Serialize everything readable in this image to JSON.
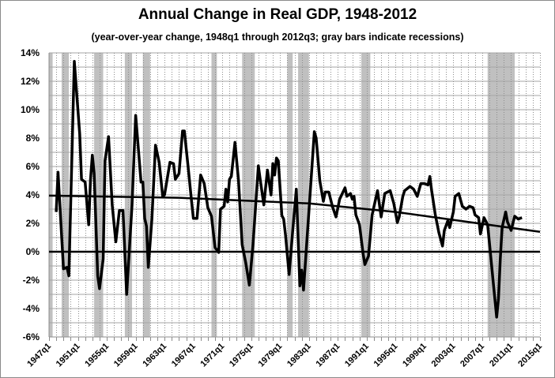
{
  "chart_data": {
    "type": "line",
    "title": "Annual Change in Real GDP, 1948-2012",
    "subtitle": "(year-over-year change, 1948q1 through 2012q3; gray bars indicate recessions)",
    "xlabel": "",
    "ylabel": "",
    "xlim": [
      "1947q1",
      "2015q1"
    ],
    "ylim": [
      -6,
      14
    ],
    "grid": {
      "horizontal": "solid, every 1%",
      "vertical": "dotted, every year"
    },
    "y_ticks": [
      {
        "value": 14,
        "label": "14%"
      },
      {
        "value": 12,
        "label": "12%"
      },
      {
        "value": 10,
        "label": "10%"
      },
      {
        "value": 8,
        "label": "8%"
      },
      {
        "value": 6,
        "label": "6%"
      },
      {
        "value": 4,
        "label": "4%"
      },
      {
        "value": 2,
        "label": "2%"
      },
      {
        "value": 0,
        "label": "0%"
      },
      {
        "value": -2,
        "label": "-2%"
      },
      {
        "value": -4,
        "label": "-4%"
      },
      {
        "value": -6,
        "label": "-6%"
      }
    ],
    "x_tick_labels": [
      "1947q1",
      "1951q1",
      "1955q1",
      "1959q1",
      "1963q1",
      "1967q1",
      "1971q1",
      "1975q1",
      "1979q1",
      "1983q1",
      "1987q1",
      "1991q1",
      "1995q1",
      "1999q1",
      "2003q1",
      "2007q1",
      "2011q1",
      "2015q1"
    ],
    "colors": {
      "line": "#000000",
      "recession": "#c0c0c0",
      "grid": "#a6a6a6"
    },
    "recessions": [
      [
        "1947q1",
        "1947q2"
      ],
      [
        "1948q4",
        "1949q3"
      ],
      [
        "1953q2",
        "1954q2"
      ],
      [
        "1957q3",
        "1958q2"
      ],
      [
        "1960q1",
        "1960q4"
      ],
      [
        "1969q3",
        "1970q1"
      ],
      [
        "1973q4",
        "1975q2"
      ],
      [
        "1980q1",
        "1980q3"
      ],
      [
        "1981q3",
        "1982q4"
      ],
      [
        "1990q2",
        "1991q2"
      ],
      [
        "2007q4",
        "2011q2"
      ]
    ],
    "series": [
      {
        "values": [
          [
            "1948q1",
            2.8
          ],
          [
            "1948q2",
            5.6
          ],
          [
            "1949q1",
            -1.2
          ],
          [
            "1949q3",
            -1.1
          ],
          [
            "1949q4",
            -1.7
          ],
          [
            "1950q3",
            13.4
          ],
          [
            "1951q2",
            8.3
          ],
          [
            "1951q3",
            5.1
          ],
          [
            "1952q1",
            4.9
          ],
          [
            "1952q3",
            1.9
          ],
          [
            "1952q4",
            5.1
          ],
          [
            "1953q1",
            6.8
          ],
          [
            "1953q2",
            5.5
          ],
          [
            "1953q4",
            -1.7
          ],
          [
            "1954q1",
            -2.6
          ],
          [
            "1954q3",
            -0.5
          ],
          [
            "1954q4",
            6.4
          ],
          [
            "1955q2",
            8.1
          ],
          [
            "1955q4",
            3.3
          ],
          [
            "1956q2",
            0.7
          ],
          [
            "1956q4",
            2.9
          ],
          [
            "1957q2",
            2.9
          ],
          [
            "1957q4",
            -3.0
          ],
          [
            "1958q3",
            3.3
          ],
          [
            "1959q1",
            9.6
          ],
          [
            "1959q4",
            4.9
          ],
          [
            "1960q1",
            4.9
          ],
          [
            "1960q2",
            2.35
          ],
          [
            "1960q3",
            1.8
          ],
          [
            "1960q4",
            -1.1
          ],
          [
            "1961q2",
            2.3
          ],
          [
            "1961q4",
            7.5
          ],
          [
            "1962q2",
            6.3
          ],
          [
            "1962q4",
            3.9
          ],
          [
            "1963q1",
            4.0
          ],
          [
            "1963q4",
            6.3
          ],
          [
            "1964q2",
            6.2
          ],
          [
            "1964q3",
            5.1
          ],
          [
            "1965q1",
            5.5
          ],
          [
            "1965q3",
            8.5
          ],
          [
            "1965q4",
            8.5
          ],
          [
            "1966q2",
            6.05
          ],
          [
            "1966q4",
            3.5
          ],
          [
            "1967q1",
            2.35
          ],
          [
            "1967q3",
            2.35
          ],
          [
            "1968q1",
            5.4
          ],
          [
            "1968q3",
            4.8
          ],
          [
            "1969q1",
            3.1
          ],
          [
            "1969q3",
            2.5
          ],
          [
            "1970q1",
            0.3
          ],
          [
            "1970q3",
            -0.05
          ],
          [
            "1970q4",
            3.0
          ],
          [
            "1971q2",
            3.2
          ],
          [
            "1971q3",
            4.4
          ],
          [
            "1971q4",
            3.5
          ],
          [
            "1972q1",
            5.1
          ],
          [
            "1972q2",
            5.3
          ],
          [
            "1972q4",
            7.7
          ],
          [
            "1973q2",
            5.0
          ],
          [
            "1973q4",
            0.5
          ],
          [
            "1974q2",
            -0.8
          ],
          [
            "1974q4",
            -2.35
          ],
          [
            "1975q2",
            0.5
          ],
          [
            "1976q1",
            6.05
          ],
          [
            "1976q2",
            5.1
          ],
          [
            "1976q4",
            3.3
          ],
          [
            "1977q2",
            5.75
          ],
          [
            "1977q4",
            4.0
          ],
          [
            "1978q1",
            6.2
          ],
          [
            "1978q2",
            5.4
          ],
          [
            "1978q3",
            6.6
          ],
          [
            "1978q4",
            6.4
          ],
          [
            "1979q2",
            2.55
          ],
          [
            "1979q3",
            2.3
          ],
          [
            "1979q4",
            1.2
          ],
          [
            "1980q2",
            -1.6
          ],
          [
            "1980q4",
            1.45
          ],
          [
            "1981q2",
            4.4
          ],
          [
            "1981q4",
            -2.4
          ],
          [
            "1982q1",
            -1.3
          ],
          [
            "1982q2",
            -2.7
          ],
          [
            "1983q1",
            2.9
          ],
          [
            "1983q4",
            8.45
          ],
          [
            "1984q1",
            8.0
          ],
          [
            "1984q3",
            5.0
          ],
          [
            "1985q1",
            3.55
          ],
          [
            "1985q2",
            4.2
          ],
          [
            "1985q4",
            4.2
          ],
          [
            "1986q2",
            3.2
          ],
          [
            "1986q4",
            2.45
          ],
          [
            "1987q2",
            3.7
          ],
          [
            "1988q1",
            4.5
          ],
          [
            "1988q2",
            3.9
          ],
          [
            "1988q4",
            4.1
          ],
          [
            "1989q1",
            3.7
          ],
          [
            "1989q2",
            3.9
          ],
          [
            "1989q3",
            2.6
          ],
          [
            "1990q1",
            1.9
          ],
          [
            "1990q3",
            -0.15
          ],
          [
            "1990q4",
            -0.9
          ],
          [
            "1991q2",
            -0.3
          ],
          [
            "1991q4",
            2.6
          ],
          [
            "1992q3",
            4.3
          ],
          [
            "1993q1",
            2.45
          ],
          [
            "1993q3",
            4.1
          ],
          [
            "1994q2",
            4.3
          ],
          [
            "1994q4",
            3.4
          ],
          [
            "1995q2",
            2.05
          ],
          [
            "1995q3",
            2.45
          ],
          [
            "1996q1",
            3.9
          ],
          [
            "1996q2",
            4.3
          ],
          [
            "1997q1",
            4.6
          ],
          [
            "1997q3",
            4.4
          ],
          [
            "1998q1",
            3.9
          ],
          [
            "1998q3",
            4.8
          ],
          [
            "1999q1",
            4.8
          ],
          [
            "1999q3",
            4.7
          ],
          [
            "1999q4",
            5.3
          ],
          [
            "2000q1",
            4.3
          ],
          [
            "2000q3",
            2.6
          ],
          [
            "2001q1",
            1.35
          ],
          [
            "2001q3",
            0.4
          ],
          [
            "2001q4",
            1.5
          ],
          [
            "2002q2",
            2.2
          ],
          [
            "2002q3",
            1.7
          ],
          [
            "2003q1",
            2.8
          ],
          [
            "2003q2",
            3.9
          ],
          [
            "2003q4",
            4.1
          ],
          [
            "2004q2",
            3.2
          ],
          [
            "2004q4",
            3.0
          ],
          [
            "2005q2",
            3.2
          ],
          [
            "2005q4",
            3.1
          ],
          [
            "2006q1",
            2.6
          ],
          [
            "2006q3",
            2.4
          ],
          [
            "2006q4",
            1.25
          ],
          [
            "2007q2",
            2.4
          ],
          [
            "2007q4",
            1.9
          ],
          [
            "2008q1",
            0.6
          ],
          [
            "2008q3",
            -2.0
          ],
          [
            "2009q1",
            -4.6
          ],
          [
            "2009q2",
            -3.3
          ],
          [
            "2009q3",
            -0.5
          ],
          [
            "2009q4",
            1.7
          ],
          [
            "2010q2",
            2.8
          ],
          [
            "2010q3",
            2.1
          ],
          [
            "2011q1",
            1.5
          ],
          [
            "2011q3",
            2.5
          ],
          [
            "2012q1",
            2.3
          ],
          [
            "2012q3",
            2.4
          ]
        ]
      }
    ],
    "trend": [
      [
        "1947q1",
        3.95
      ],
      [
        "1965q1",
        3.8
      ],
      [
        "1983q1",
        3.4
      ],
      [
        "1995q1",
        2.8
      ],
      [
        "2015q1",
        1.4
      ]
    ]
  }
}
